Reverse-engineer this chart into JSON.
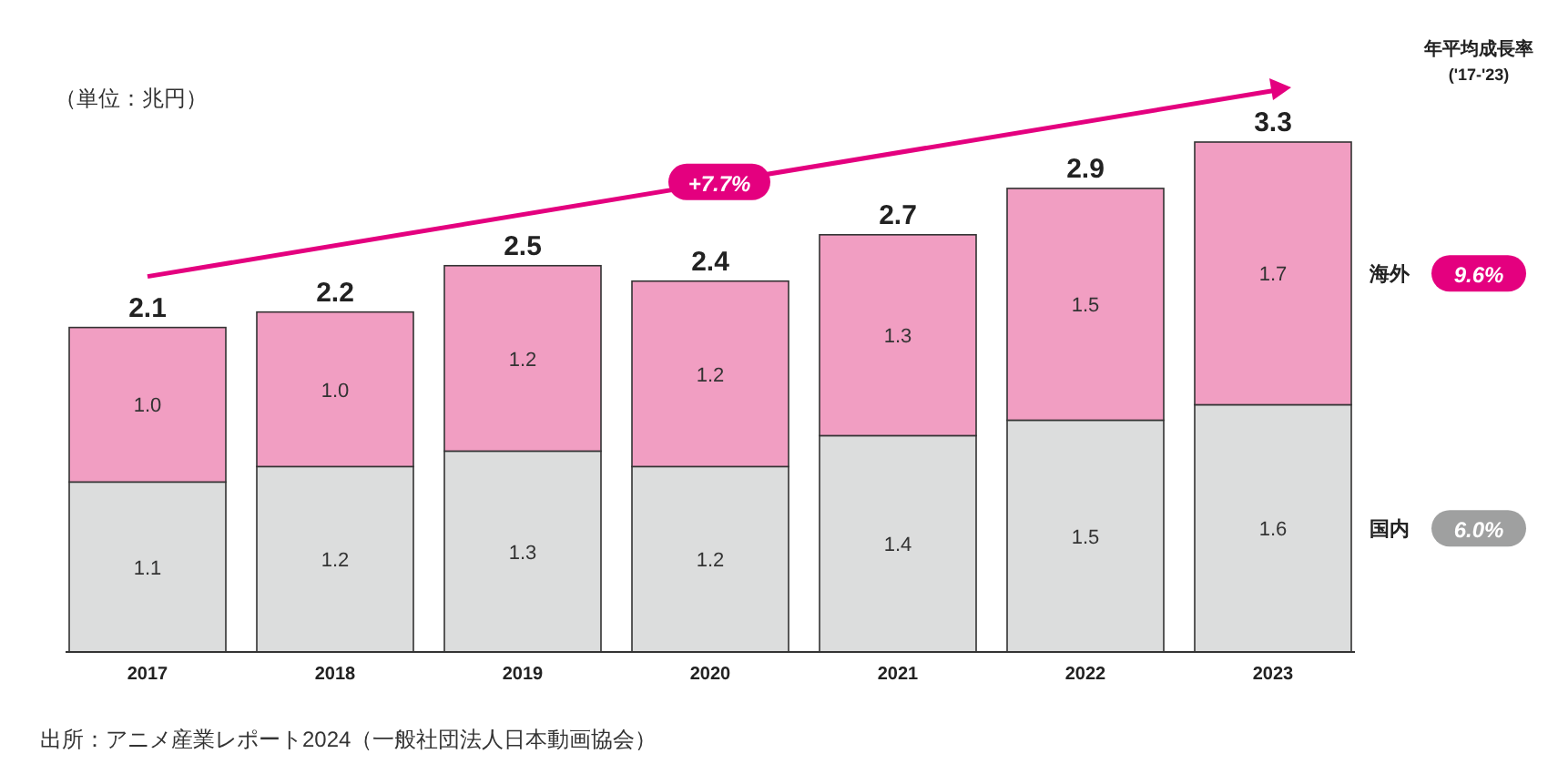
{
  "chart_data": {
    "type": "bar",
    "stacked": true,
    "categories": [
      "2017",
      "2018",
      "2019",
      "2020",
      "2021",
      "2022",
      "2023"
    ],
    "series": [
      {
        "name": "国内",
        "color": "#dcdddd",
        "values": [
          1.1,
          1.2,
          1.3,
          1.2,
          1.4,
          1.5,
          1.6
        ],
        "value_labels": [
          "1.1",
          "1.2",
          "1.3",
          "1.2",
          "1.4",
          "1.5",
          "1.6"
        ]
      },
      {
        "name": "海外",
        "color": "#f19ec2",
        "values": [
          1.0,
          1.0,
          1.2,
          1.2,
          1.3,
          1.5,
          1.7
        ],
        "value_labels": [
          "1.0",
          "1.0",
          "1.2",
          "1.2",
          "1.3",
          "1.5",
          "1.7"
        ]
      }
    ],
    "totals": [
      "2.1",
      "2.2",
      "2.5",
      "2.4",
      "2.7",
      "2.9",
      "3.3"
    ],
    "annotations": [
      "（単位：兆円）",
      "+7.7%",
      "年平均成長率",
      "('17-'23)",
      "9.6%",
      "6.0%",
      "出所：アニメ産業レポート2024（一般社団法人日本動画協会）"
    ]
  }
}
